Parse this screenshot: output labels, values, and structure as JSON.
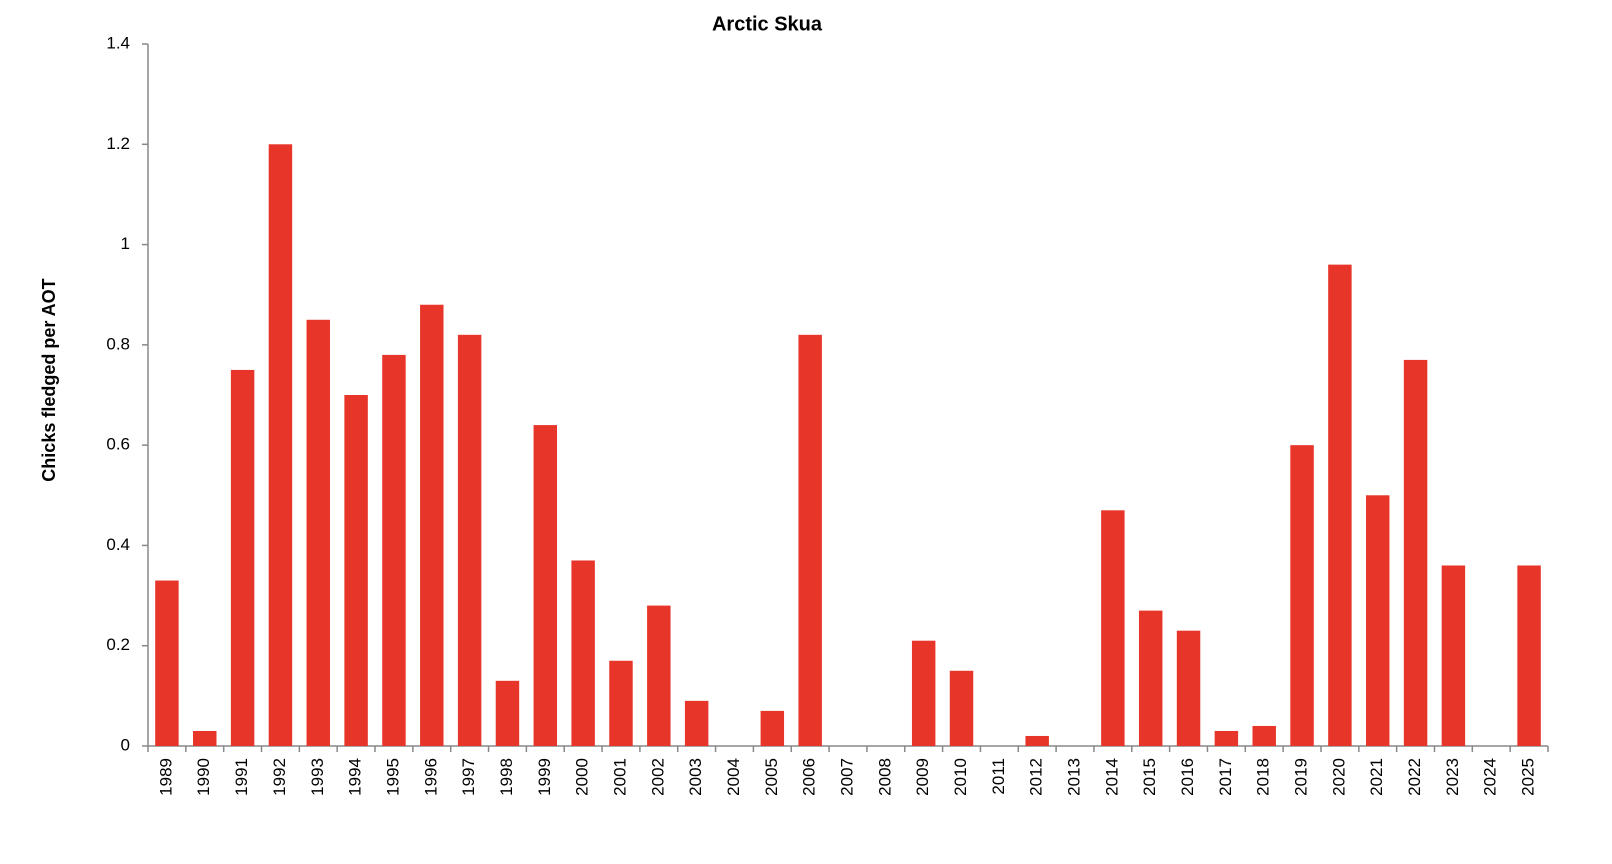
{
  "chart_data": {
    "type": "bar",
    "title": "Arctic Skua",
    "y_label": "Chicks fledged per AOT",
    "categories": [
      "1989",
      "1990",
      "1991",
      "1992",
      "1993",
      "1994",
      "1995",
      "1996",
      "1997",
      "1998",
      "1999",
      "2000",
      "2001",
      "2002",
      "2003",
      "2004",
      "2005",
      "2006",
      "2007",
      "2008",
      "2009",
      "2010",
      "2011",
      "2012",
      "2013",
      "2014",
      "2015",
      "2016",
      "2017",
      "2018",
      "2019",
      "2020",
      "2021",
      "2022",
      "2023",
      "2024",
      "2025"
    ],
    "values": [
      0.33,
      0.03,
      0.75,
      1.2,
      0.85,
      0.7,
      0.78,
      0.88,
      0.82,
      0.13,
      0.64,
      0.37,
      0.17,
      0.28,
      0.09,
      0,
      0.07,
      0.82,
      0,
      0,
      0.21,
      0.15,
      0,
      0.02,
      0,
      0.47,
      0.27,
      0.23,
      0.03,
      0.04,
      0.6,
      0.96,
      0.5,
      0.77,
      0.36,
      0,
      0.36
    ],
    "color": "#e8352a",
    "ylim": [
      0,
      1.4
    ],
    "yticks": [
      0,
      0.2,
      0.4,
      0.6,
      0.8,
      1,
      1.2,
      1.4
    ],
    "grid": false
  }
}
